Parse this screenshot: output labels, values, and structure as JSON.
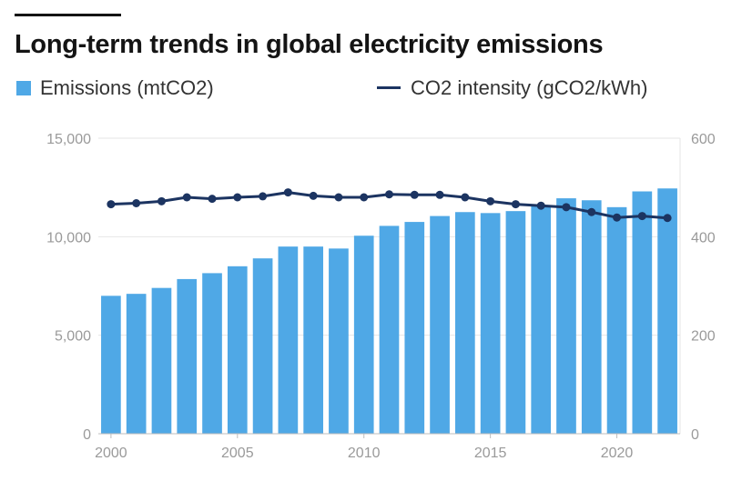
{
  "title": "Long-term trends in global electricity emissions",
  "legend": {
    "bar_label": "Emissions (mtCO2)",
    "line_label": "CO2 intensity (gCO2/kWh)"
  },
  "colors": {
    "bar": "#4fa8e6",
    "line": "#1c3461",
    "grid": "#e6e6e6",
    "tick": "#9a9a9a",
    "title": "#141414"
  },
  "chart_data": {
    "type": "bar",
    "title": "Long-term trends in global electricity emissions",
    "x": [
      2000,
      2001,
      2002,
      2003,
      2004,
      2005,
      2006,
      2007,
      2008,
      2009,
      2010,
      2011,
      2012,
      2013,
      2014,
      2015,
      2016,
      2017,
      2018,
      2019,
      2020,
      2021,
      2022
    ],
    "series": [
      {
        "name": "Emissions (mtCO2)",
        "kind": "bar",
        "axis": "left",
        "values": [
          7000,
          7100,
          7400,
          7850,
          8150,
          8500,
          8900,
          9500,
          9500,
          9400,
          10050,
          10550,
          10750,
          11050,
          11250,
          11200,
          11300,
          11600,
          11950,
          11850,
          11500,
          12300,
          12450
        ]
      },
      {
        "name": "CO2 intensity (gCO2/kWh)",
        "kind": "line",
        "axis": "right",
        "values": [
          466,
          468,
          472,
          480,
          477,
          480,
          482,
          490,
          483,
          480,
          480,
          486,
          485,
          485,
          480,
          472,
          466,
          463,
          460,
          450,
          439,
          442,
          438
        ]
      }
    ],
    "left_axis": {
      "min": 0,
      "max": 15000,
      "ticks": [
        0,
        5000,
        10000,
        15000
      ],
      "tick_labels": [
        "0",
        "5,000",
        "10,000",
        "15,000"
      ]
    },
    "right_axis": {
      "min": 0,
      "max": 600,
      "ticks": [
        0,
        200,
        400,
        600
      ],
      "tick_labels": [
        "0",
        "200",
        "400",
        "600"
      ]
    },
    "x_ticks": [
      2000,
      2005,
      2010,
      2015,
      2020
    ],
    "x_tick_labels": [
      "2000",
      "2005",
      "2010",
      "2015",
      "2020"
    ],
    "grid": true,
    "legend_position": "top"
  }
}
